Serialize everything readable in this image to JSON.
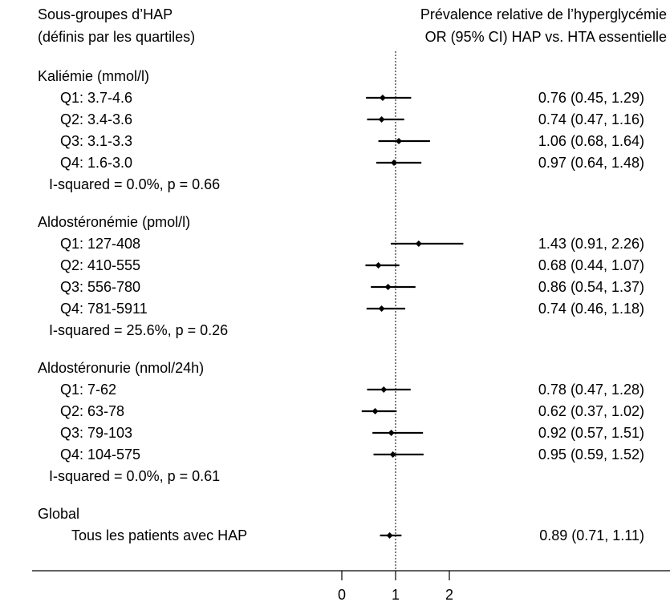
{
  "chart_data": {
    "type": "forest",
    "headers": {
      "left_line1": "Sous-groupes d’HAP",
      "left_line2": "(définis par les quartiles)",
      "right_line1": "Prévalence relative de l’hyperglycémie",
      "right_line2": "OR (95% CI) HAP vs. HTA essentielle"
    },
    "reference_line": 1,
    "xlim": [
      0,
      2
    ],
    "xticks": [
      "0",
      "1",
      "2"
    ],
    "groups": [
      {
        "title": "Kaliémie (mmol/l)",
        "rows": [
          {
            "label": "Q1: 3.7-4.6",
            "or": 0.76,
            "lo": 0.45,
            "hi": 1.29,
            "ci_text": "0.76 (0.45, 1.29)"
          },
          {
            "label": "Q2: 3.4-3.6",
            "or": 0.74,
            "lo": 0.47,
            "hi": 1.16,
            "ci_text": "0.74 (0.47, 1.16)"
          },
          {
            "label": "Q3: 3.1-3.3",
            "or": 1.06,
            "lo": 0.68,
            "hi": 1.64,
            "ci_text": "1.06 (0.68, 1.64)"
          },
          {
            "label": "Q4: 1.6-3.0",
            "or": 0.97,
            "lo": 0.64,
            "hi": 1.48,
            "ci_text": "0.97 (0.64, 1.48)"
          }
        ],
        "heterogeneity": "I-squared = 0.0%, p = 0.66"
      },
      {
        "title": "Aldostéronémie (pmol/l)",
        "rows": [
          {
            "label": "Q1: 127-408",
            "or": 1.43,
            "lo": 0.91,
            "hi": 2.26,
            "ci_text": "1.43 (0.91, 2.26)"
          },
          {
            "label": "Q2: 410-555",
            "or": 0.68,
            "lo": 0.44,
            "hi": 1.07,
            "ci_text": "0.68 (0.44, 1.07)"
          },
          {
            "label": "Q3: 556-780",
            "or": 0.86,
            "lo": 0.54,
            "hi": 1.37,
            "ci_text": "0.86 (0.54, 1.37)"
          },
          {
            "label": "Q4: 781-5911",
            "or": 0.74,
            "lo": 0.46,
            "hi": 1.18,
            "ci_text": "0.74 (0.46, 1.18)"
          }
        ],
        "heterogeneity": "I-squared = 25.6%, p = 0.26"
      },
      {
        "title": "Aldostéronurie (nmol/24h)",
        "rows": [
          {
            "label": "Q1: 7-62",
            "or": 0.78,
            "lo": 0.47,
            "hi": 1.28,
            "ci_text": "0.78 (0.47, 1.28)"
          },
          {
            "label": "Q2: 63-78",
            "or": 0.62,
            "lo": 0.37,
            "hi": 1.02,
            "ci_text": "0.62 (0.37, 1.02)"
          },
          {
            "label": "Q3: 79-103",
            "or": 0.92,
            "lo": 0.57,
            "hi": 1.51,
            "ci_text": "0.92 (0.57, 1.51)"
          },
          {
            "label": "Q4: 104-575",
            "or": 0.95,
            "lo": 0.59,
            "hi": 1.52,
            "ci_text": "0.95 (0.59, 1.52)"
          }
        ],
        "heterogeneity": "I-squared = 0.0%, p = 0.61"
      },
      {
        "title": "Global",
        "rows": [
          {
            "label": "Tous les patients avec HAP",
            "or": 0.89,
            "lo": 0.71,
            "hi": 1.11,
            "ci_text": "0.89 (0.71, 1.11)"
          }
        ],
        "heterogeneity": ""
      }
    ]
  }
}
